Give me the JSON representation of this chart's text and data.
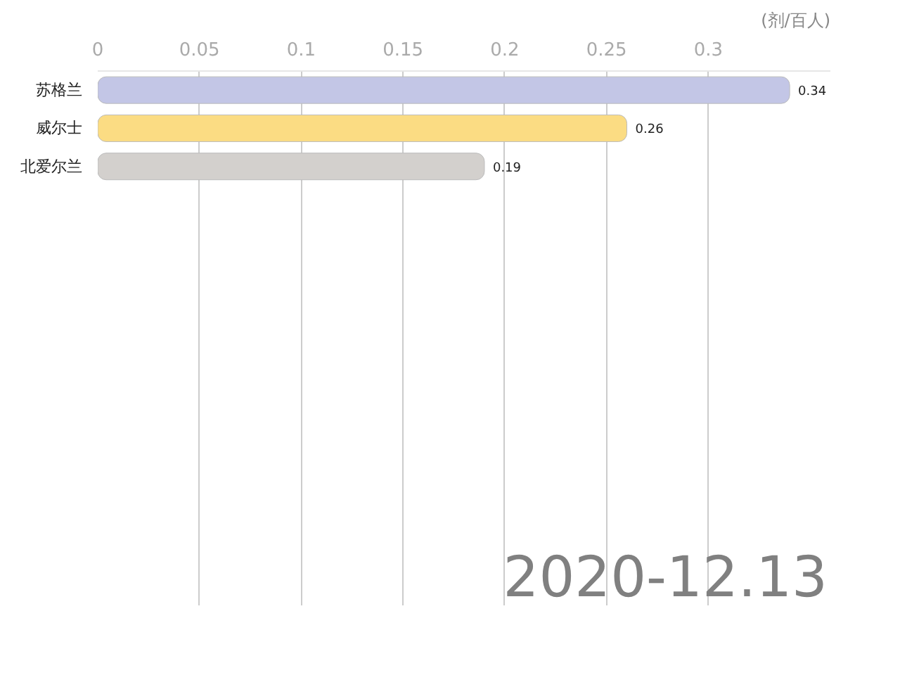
{
  "chart_data": {
    "type": "bar",
    "orientation": "horizontal",
    "xlabel": "(剂/百人)",
    "categories": [
      "苏格兰",
      "威尔士",
      "北爱尔兰"
    ],
    "values": [
      0.34,
      0.26,
      0.19
    ],
    "colors": [
      "#c3c6e6",
      "#fbdc83",
      "#d3d0cd"
    ],
    "xlim": [
      0,
      0.36
    ],
    "xticks": [
      0,
      0.05,
      0.1,
      0.15,
      0.2,
      0.25,
      0.3
    ],
    "grid": "x",
    "data_labels": true,
    "annotations": [
      "2020-12.13"
    ]
  }
}
